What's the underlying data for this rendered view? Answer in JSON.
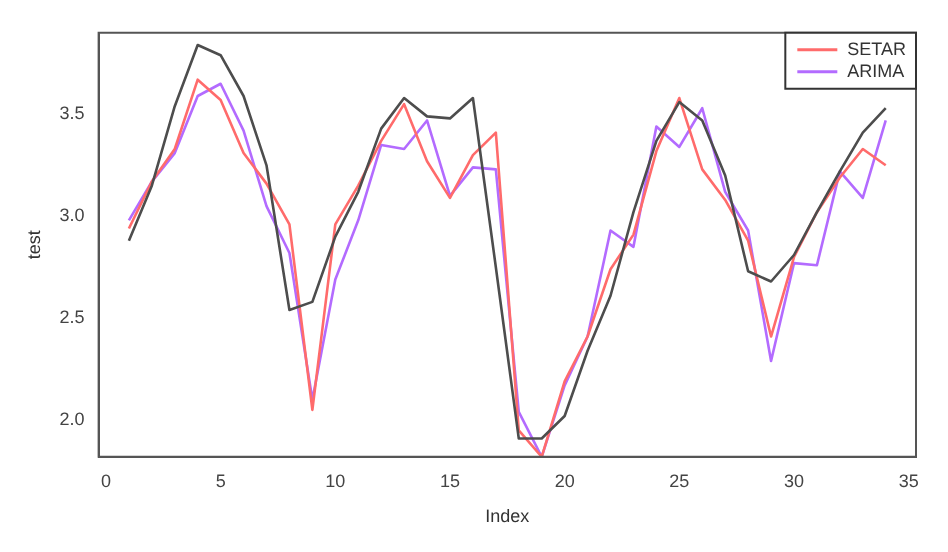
{
  "chart_data": {
    "type": "line",
    "xlabel": "Index",
    "ylabel": "test",
    "x": [
      1,
      2,
      3,
      4,
      5,
      6,
      7,
      8,
      9,
      10,
      11,
      12,
      13,
      14,
      15,
      16,
      17,
      18,
      19,
      20,
      21,
      22,
      23,
      24,
      25,
      26,
      27,
      28,
      29,
      30,
      31,
      32,
      33,
      34
    ],
    "series": [
      {
        "color": "#4d4d4d",
        "values": [
          2.88,
          3.15,
          3.54,
          3.84,
          3.79,
          3.59,
          3.25,
          2.54,
          2.58,
          2.9,
          3.12,
          3.43,
          3.58,
          3.49,
          3.48,
          3.58,
          2.75,
          1.91,
          1.91,
          2.02,
          2.34,
          2.61,
          3.02,
          3.37,
          3.56,
          3.47,
          3.2,
          2.73,
          2.68,
          2.81,
          3.02,
          3.22,
          3.41,
          3.53
        ]
      },
      {
        "name": "SETAR",
        "color": "#ff6b6b",
        "values": [
          2.94,
          3.17,
          3.33,
          3.67,
          3.57,
          3.31,
          3.16,
          2.96,
          2.05,
          2.96,
          3.15,
          3.37,
          3.55,
          3.27,
          3.09,
          3.3,
          3.41,
          1.95,
          1.82,
          2.19,
          2.41,
          2.74,
          2.91,
          3.32,
          3.58,
          3.23,
          3.08,
          2.88,
          2.41,
          2.8,
          3.02,
          3.19,
          3.33,
          3.25
        ]
      },
      {
        "name": "ARIMA",
        "color": "#b36bff",
        "values": [
          2.98,
          3.17,
          3.31,
          3.59,
          3.65,
          3.42,
          3.05,
          2.82,
          2.1,
          2.69,
          2.98,
          3.35,
          3.33,
          3.47,
          3.1,
          3.24,
          3.23,
          2.04,
          1.82,
          2.17,
          2.41,
          2.93,
          2.85,
          3.44,
          3.34,
          3.53,
          3.12,
          2.93,
          2.29,
          2.77,
          2.76,
          3.22,
          3.09,
          3.47
        ]
      }
    ],
    "xlim": [
      -0.32,
      35.32
    ],
    "xticks": [
      0,
      5,
      10,
      15,
      20,
      25,
      30,
      35
    ],
    "ylim": [
      1.82,
      3.9
    ],
    "yticks": [
      {
        "value": 2,
        "label": "2.0"
      },
      {
        "value": 2.5,
        "label": "2.5"
      },
      {
        "value": 3,
        "label": "3.0"
      },
      {
        "value": 3.5,
        "label": "3.5"
      }
    ],
    "legend": "top right",
    "marker": "none",
    "line_style": "solid"
  }
}
